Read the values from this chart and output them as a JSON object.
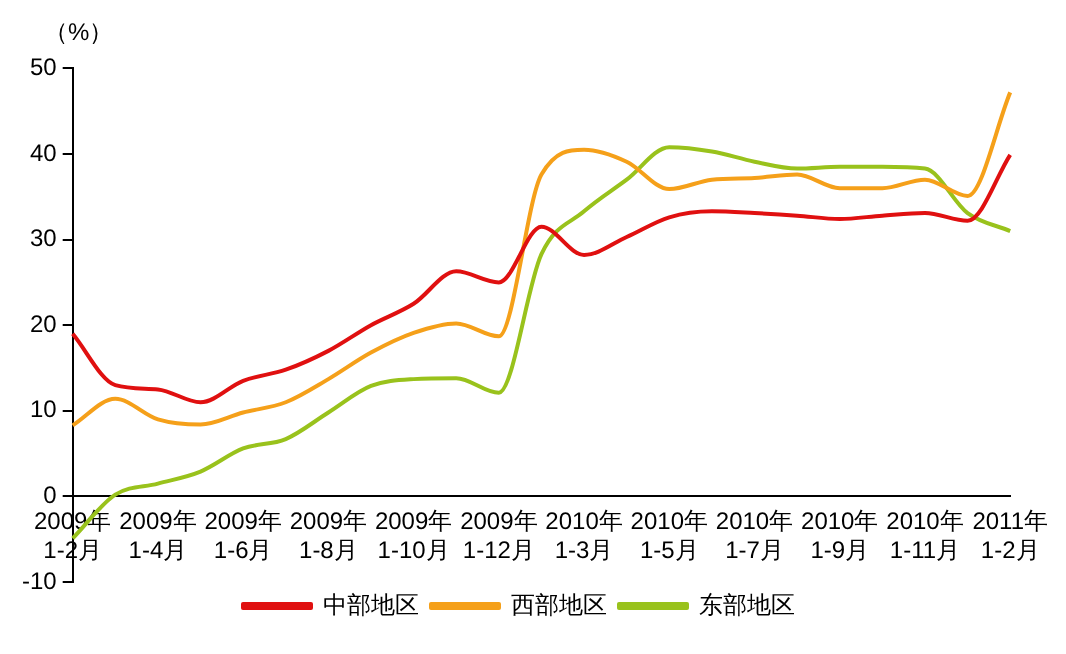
{
  "chart_data": {
    "type": "line",
    "ylabel": "（%）",
    "categories": [
      "2009年 1-2月",
      null,
      "2009年 1-4月",
      null,
      "2009年 1-6月",
      null,
      "2009年 1-8月",
      null,
      "2009年 1-10月",
      null,
      "2009年 1-12月",
      null,
      "2010年 1-3月",
      null,
      "2010年 1-5月",
      null,
      "2010年 1-7月",
      null,
      "2010年 1-9月",
      null,
      "2010年 1-11月",
      null,
      "2011年 1-2月"
    ],
    "series": [
      {
        "name": "中部地区",
        "color": "#e01010",
        "values": [
          19,
          13,
          12.5,
          11,
          13.5,
          14.8,
          17,
          20,
          22.5,
          26.3,
          25,
          31.5,
          28.2,
          30.3,
          32.6,
          33.3,
          33.1,
          32.8,
          32.4,
          32.8,
          33.1,
          32.2,
          39.9
        ]
      },
      {
        "name": "西部地区",
        "color": "#f5a01a",
        "values": [
          8.3,
          11.4,
          9,
          8.4,
          9.8,
          11,
          13.7,
          16.8,
          19.1,
          20.2,
          18.7,
          37.6,
          40.5,
          39.1,
          35.9,
          37,
          37.2,
          37.6,
          36,
          36,
          37,
          35.1,
          47.2
        ]
      },
      {
        "name": "东部地区",
        "color": "#99c21c",
        "values": [
          -4.9,
          0.2,
          1.5,
          2.9,
          5.6,
          6.7,
          9.8,
          12.9,
          13.7,
          13.8,
          12.1,
          28.3,
          33.3,
          37,
          40.8,
          40.3,
          39.1,
          38.3,
          38.5,
          38.5,
          38.3,
          33.1,
          31
        ]
      }
    ],
    "ylim": [
      -10,
      50
    ],
    "yticks": [
      -10,
      0,
      10,
      20,
      30,
      40,
      50
    ],
    "grid": false,
    "legend": "bottom",
    "marker": "none",
    "line_style": "solid"
  }
}
